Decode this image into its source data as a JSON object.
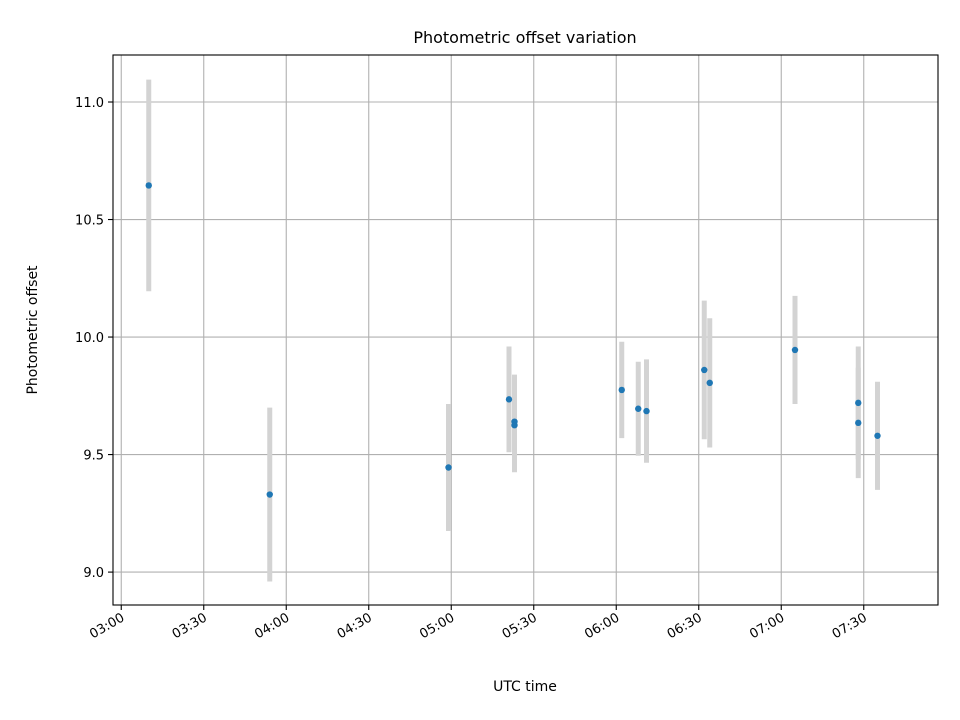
{
  "chart_data": {
    "type": "scatter",
    "title": "Photometric offset variation",
    "xlabel": "UTC time",
    "ylabel": "Photometric offset",
    "x_ticks": [
      "03:00",
      "03:30",
      "04:00",
      "04:30",
      "05:00",
      "05:30",
      "06:00",
      "06:30",
      "07:00",
      "07:30"
    ],
    "y_ticks": [
      "9.0",
      "9.5",
      "10.0",
      "10.5",
      "11.0"
    ],
    "xlim": [
      "02:57",
      "07:57"
    ],
    "ylim": [
      8.86,
      11.2
    ],
    "grid": true,
    "marker_color": "#1f77b4",
    "errorbar_color": "#d3d3d3",
    "points": [
      {
        "time": "03:10",
        "y": 10.645,
        "err": 0.45
      },
      {
        "time": "03:54",
        "y": 9.33,
        "err": 0.37
      },
      {
        "time": "04:59",
        "y": 9.445,
        "err": 0.27
      },
      {
        "time": "05:21",
        "y": 9.735,
        "err": 0.225
      },
      {
        "time": "05:23",
        "y": 9.64,
        "err": 0.2
      },
      {
        "time": "05:23",
        "y": 9.625,
        "err": 0.2
      },
      {
        "time": "06:02",
        "y": 9.775,
        "err": 0.205
      },
      {
        "time": "06:08",
        "y": 9.695,
        "err": 0.2
      },
      {
        "time": "06:11",
        "y": 9.685,
        "err": 0.22
      },
      {
        "time": "06:32",
        "y": 9.86,
        "err": 0.295
      },
      {
        "time": "06:34",
        "y": 9.805,
        "err": 0.275
      },
      {
        "time": "07:05",
        "y": 9.945,
        "err": 0.23
      },
      {
        "time": "07:28",
        "y": 9.72,
        "err": 0.24
      },
      {
        "time": "07:28",
        "y": 9.635,
        "err": 0.235
      },
      {
        "time": "07:35",
        "y": 9.58,
        "err": 0.23
      }
    ]
  }
}
